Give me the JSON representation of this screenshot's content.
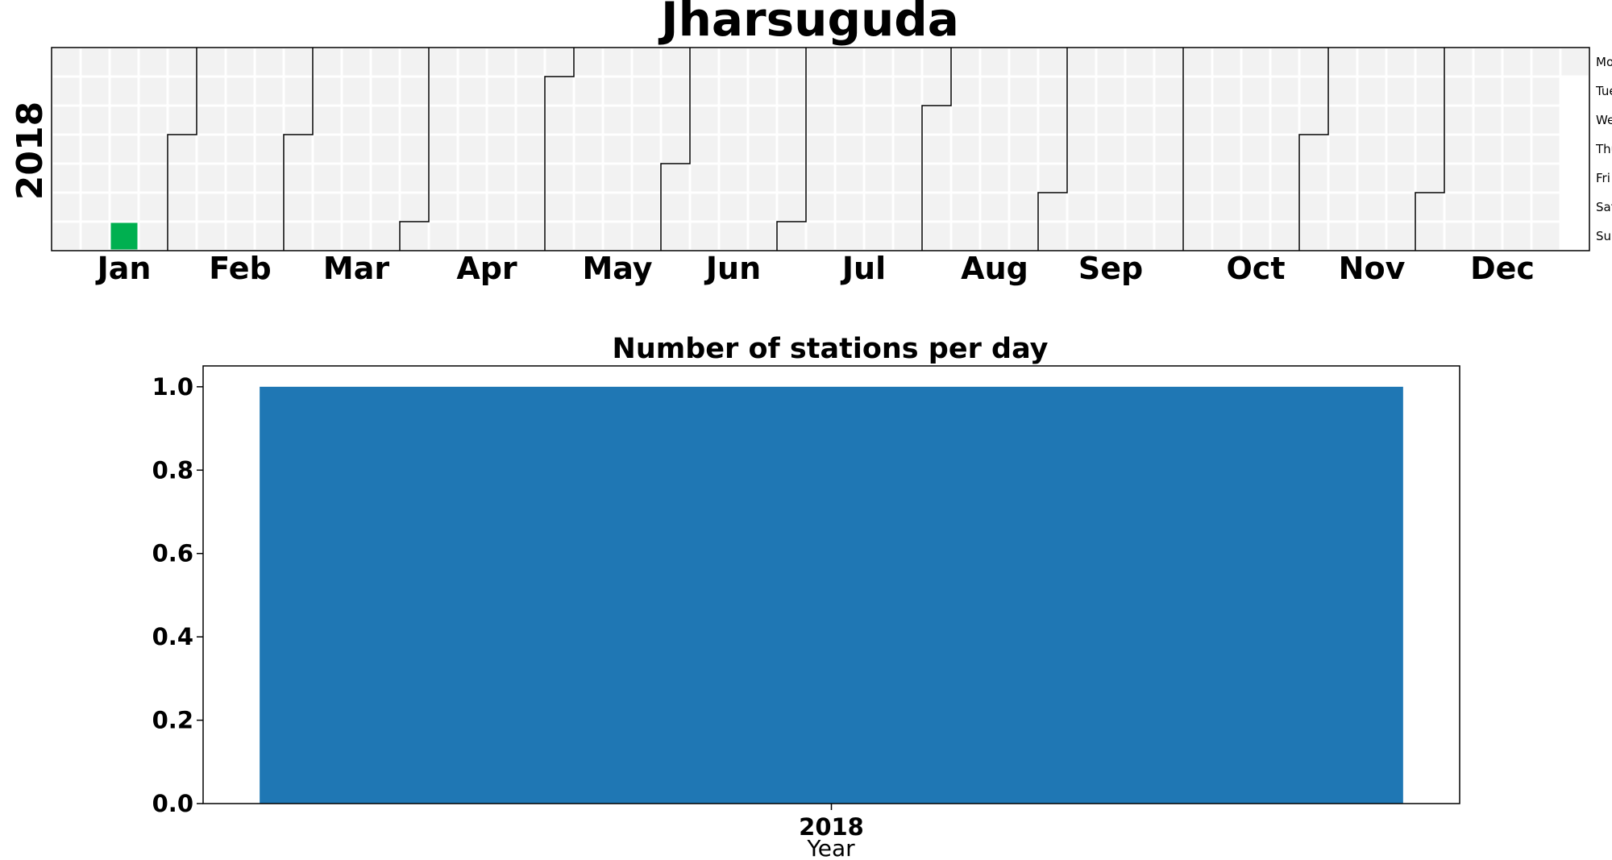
{
  "chart_data": [
    {
      "type": "heatmap",
      "title": "Jharsuguda",
      "year_label": "2018",
      "year": 2018,
      "month_labels": [
        "Jan",
        "Feb",
        "Mar",
        "Apr",
        "May",
        "Jun",
        "Jul",
        "Aug",
        "Sep",
        "Oct",
        "Nov",
        "Dec"
      ],
      "weekday_labels": [
        "Mon",
        "Tue",
        "Wed",
        "Thu",
        "Fri",
        "Sat",
        "Sun"
      ],
      "highlighted_days": [
        {
          "date": "2018-01-21",
          "value": 1,
          "color": "#00b050"
        }
      ],
      "empty_cell_color": "#f2f2f2",
      "grid": true
    },
    {
      "type": "bar",
      "title": "Number of stations per day",
      "categories": [
        "2018"
      ],
      "values": [
        1.0
      ],
      "xlabel": "Year",
      "ylabel": "",
      "ylim": [
        0,
        1.05
      ],
      "yticks": [
        "0.0",
        "0.2",
        "0.4",
        "0.6",
        "0.8",
        "1.0"
      ],
      "bar_color": "#1f77b4",
      "grid": false
    }
  ]
}
